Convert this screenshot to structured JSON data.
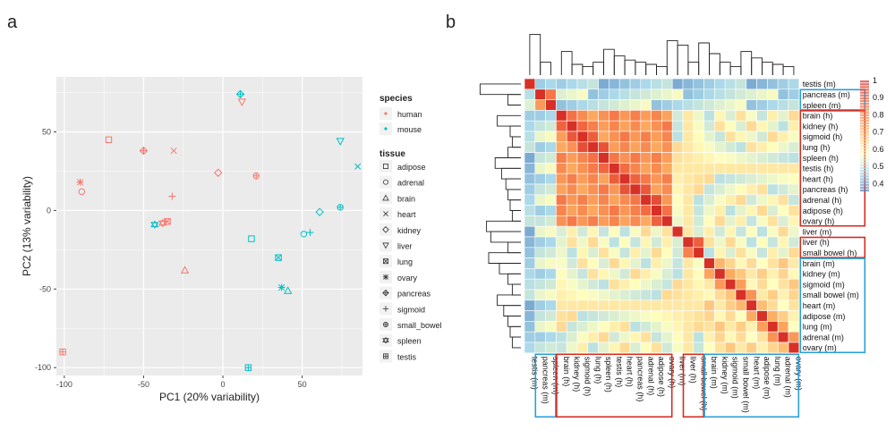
{
  "panels": {
    "a": "a",
    "b": "b"
  },
  "colors": {
    "human": "#f8766d",
    "mouse": "#00bfc4",
    "plot_bg": "#ebebeb",
    "grid": "#ffffff",
    "box_red": "#d62c1f",
    "box_blue": "#2a9fd8"
  },
  "chart_data": [
    {
      "type": "scatter",
      "xlabel": "PC1 (20% variability)",
      "ylabel": "PC2 (13% variability)",
      "xlim": [
        -105,
        88
      ],
      "ylim": [
        -105,
        85
      ],
      "xticks": [
        "-100",
        "-50",
        "0",
        "50"
      ],
      "yticks": [
        "-100",
        "-50",
        "0",
        "50"
      ],
      "grid": true,
      "legend": {
        "position": "right",
        "species_title": "species",
        "species": [
          "human",
          "mouse"
        ],
        "tissue_title": "tissue",
        "tissues": [
          "adipose",
          "adrenal",
          "brain",
          "heart",
          "kidney",
          "liver",
          "lung",
          "ovary",
          "pancreas",
          "sigmoid",
          "small_bowel",
          "spleen",
          "testis"
        ]
      },
      "points": [
        {
          "species": "human",
          "tissue": "adipose",
          "x": -72,
          "y": 45
        },
        {
          "species": "human",
          "tissue": "adrenal",
          "x": -89,
          "y": 12
        },
        {
          "species": "human",
          "tissue": "brain",
          "x": -24,
          "y": -38
        },
        {
          "species": "human",
          "tissue": "heart",
          "x": -31,
          "y": 38
        },
        {
          "species": "human",
          "tissue": "kidney",
          "x": -3,
          "y": 24
        },
        {
          "species": "human",
          "tissue": "liver",
          "x": 12,
          "y": 69
        },
        {
          "species": "human",
          "tissue": "lung",
          "x": -35,
          "y": -7
        },
        {
          "species": "human",
          "tissue": "ovary",
          "x": -90,
          "y": 18
        },
        {
          "species": "human",
          "tissue": "pancreas",
          "x": -50,
          "y": 38
        },
        {
          "species": "human",
          "tissue": "sigmoid",
          "x": -32,
          "y": 9
        },
        {
          "species": "human",
          "tissue": "small_bowel",
          "x": 21,
          "y": 22
        },
        {
          "species": "human",
          "tissue": "spleen",
          "x": -38,
          "y": -8
        },
        {
          "species": "human",
          "tissue": "testis",
          "x": -101,
          "y": -90
        },
        {
          "species": "mouse",
          "tissue": "adipose",
          "x": 18,
          "y": -18
        },
        {
          "species": "mouse",
          "tissue": "adrenal",
          "x": 51,
          "y": -15
        },
        {
          "species": "mouse",
          "tissue": "brain",
          "x": 41,
          "y": -51
        },
        {
          "species": "mouse",
          "tissue": "heart",
          "x": 85,
          "y": 28
        },
        {
          "species": "mouse",
          "tissue": "kidney",
          "x": 61,
          "y": -1
        },
        {
          "species": "mouse",
          "tissue": "liver",
          "x": 74,
          "y": 44
        },
        {
          "species": "mouse",
          "tissue": "lung",
          "x": 35,
          "y": -30
        },
        {
          "species": "mouse",
          "tissue": "ovary",
          "x": 37,
          "y": -49
        },
        {
          "species": "mouse",
          "tissue": "pancreas",
          "x": 11,
          "y": 74
        },
        {
          "species": "mouse",
          "tissue": "sigmoid",
          "x": 55,
          "y": -14
        },
        {
          "species": "mouse",
          "tissue": "small_bowel",
          "x": 74,
          "y": 2
        },
        {
          "species": "mouse",
          "tissue": "spleen",
          "x": -43,
          "y": -9
        },
        {
          "species": "mouse",
          "tissue": "testis",
          "x": 16,
          "y": -100
        }
      ]
    },
    {
      "type": "heatmap",
      "labels": [
        "testis (m)",
        "pancreas (m)",
        "spleen (m)",
        "brain (h)",
        "kidney (h)",
        "sigmoid (h)",
        "lung (h)",
        "spleen (h)",
        "testis (h)",
        "heart (h)",
        "pancreas (h)",
        "adrenal (h)",
        "adipose (h)",
        "ovary (h)",
        "liver (m)",
        "liver (h)",
        "small bowel (h)",
        "brain (m)",
        "kidney (m)",
        "sigmoid (m)",
        "small bowel (m)",
        "heart (m)",
        "adipose (m)",
        "lung (m)",
        "adrenal (m)",
        "ovary (m)"
      ],
      "color_scale": {
        "ticks": [
          "1",
          "0.9",
          "0.8",
          "0.7",
          "0.6",
          "0.5",
          "0.4"
        ],
        "min": 0.35,
        "max": 1.0
      },
      "boxes": [
        {
          "from": 1,
          "to": 2,
          "color": "blue"
        },
        {
          "from": 3,
          "to": 13,
          "color": "red"
        },
        {
          "from": 15,
          "to": 16,
          "color": "red"
        },
        {
          "from": 17,
          "to": 25,
          "color": "blue"
        }
      ],
      "group_base": [
        0.45,
        0.58,
        0.65,
        0.6,
        0.62,
        0.5
      ],
      "groups": [
        0,
        1,
        1,
        2,
        2,
        2,
        2,
        2,
        2,
        2,
        2,
        2,
        2,
        2,
        3,
        4,
        4,
        5,
        5,
        5,
        5,
        5,
        5,
        5,
        5,
        5
      ]
    }
  ]
}
